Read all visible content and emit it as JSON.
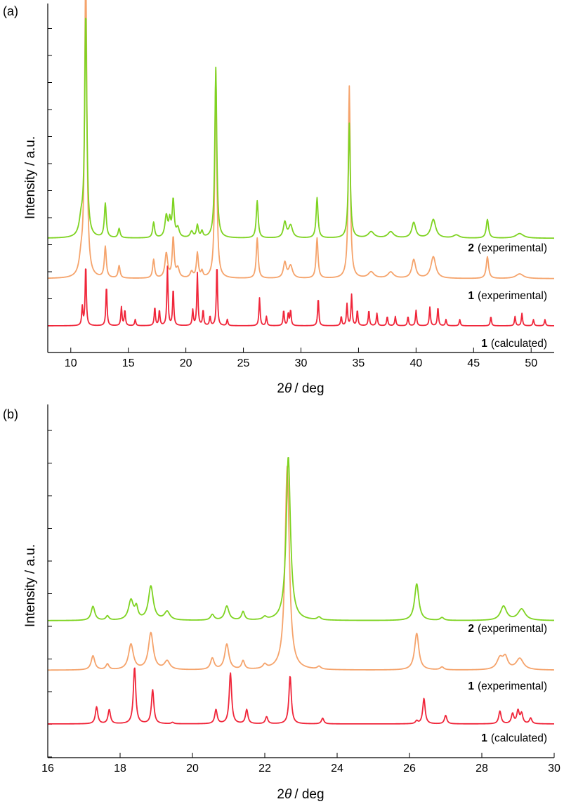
{
  "colors": {
    "green": "#7ed321",
    "orange": "#f5a36b",
    "red": "#f0263a"
  },
  "chart_data": [
    {
      "panel_label": "(a)",
      "type": "line",
      "xlabel_prefix": "2",
      "xlabel_theta": "θ",
      "xlabel_suffix": "/ deg",
      "ylabel": "Intensity / a.u.",
      "xlim": [
        8,
        52
      ],
      "xticks": [
        10,
        15,
        20,
        25,
        30,
        35,
        40,
        45,
        50
      ],
      "series": [
        {
          "label_num": "2",
          "label_text": "(experimental)",
          "color": "green",
          "offset": 0.27,
          "base": 0.012,
          "peaks": [
            [
              10.9,
              0.05,
              0.2
            ],
            [
              11.3,
              0.72,
              0.11
            ],
            [
              13.0,
              0.11,
              0.1
            ],
            [
              14.2,
              0.03,
              0.1
            ],
            [
              17.2,
              0.05,
              0.1
            ],
            [
              18.3,
              0.07,
              0.14
            ],
            [
              18.6,
              0.05,
              0.1
            ],
            [
              18.9,
              0.12,
              0.1
            ],
            [
              19.3,
              0.03,
              0.15
            ],
            [
              20.5,
              0.02,
              0.15
            ],
            [
              21.0,
              0.04,
              0.1
            ],
            [
              21.4,
              0.02,
              0.1
            ],
            [
              22.6,
              0.55,
              0.1
            ],
            [
              26.2,
              0.12,
              0.1
            ],
            [
              28.6,
              0.05,
              0.15
            ],
            [
              29.1,
              0.04,
              0.2
            ],
            [
              31.4,
              0.13,
              0.1
            ],
            [
              34.2,
              0.37,
              0.1
            ],
            [
              36.1,
              0.02,
              0.3
            ],
            [
              37.8,
              0.02,
              0.3
            ],
            [
              39.8,
              0.05,
              0.2
            ],
            [
              41.5,
              0.06,
              0.25
            ],
            [
              43.5,
              0.01,
              0.3
            ],
            [
              46.2,
              0.06,
              0.12
            ],
            [
              49.0,
              0.015,
              0.4
            ]
          ]
        },
        {
          "label_num": "1",
          "label_text": "(experimental)",
          "color": "orange",
          "offset": 0.14,
          "base": 0.012,
          "peaks": [
            [
              10.9,
              0.05,
              0.2
            ],
            [
              11.3,
              1.0,
              0.11
            ],
            [
              13.0,
              0.1,
              0.1
            ],
            [
              14.2,
              0.04,
              0.1
            ],
            [
              17.2,
              0.06,
              0.1
            ],
            [
              18.3,
              0.08,
              0.14
            ],
            [
              18.9,
              0.13,
              0.1
            ],
            [
              19.3,
              0.03,
              0.15
            ],
            [
              20.5,
              0.02,
              0.15
            ],
            [
              21.0,
              0.08,
              0.1
            ],
            [
              21.4,
              0.02,
              0.1
            ],
            [
              22.6,
              0.67,
              0.1
            ],
            [
              26.2,
              0.13,
              0.1
            ],
            [
              28.6,
              0.05,
              0.15
            ],
            [
              29.1,
              0.04,
              0.2
            ],
            [
              31.4,
              0.13,
              0.1
            ],
            [
              34.2,
              0.62,
              0.1
            ],
            [
              36.1,
              0.02,
              0.3
            ],
            [
              37.8,
              0.02,
              0.3
            ],
            [
              39.8,
              0.06,
              0.2
            ],
            [
              41.5,
              0.07,
              0.25
            ],
            [
              46.2,
              0.07,
              0.12
            ],
            [
              49.0,
              0.015,
              0.4
            ]
          ]
        },
        {
          "label_num": "1",
          "label_text": "(calculated)",
          "color": "red",
          "offset": 0.0,
          "base": 0.0,
          "peaks": [
            [
              11.0,
              0.06,
              0.06
            ],
            [
              11.3,
              0.2,
              0.06
            ],
            [
              13.1,
              0.13,
              0.06
            ],
            [
              14.4,
              0.06,
              0.06
            ],
            [
              14.7,
              0.05,
              0.06
            ],
            [
              15.6,
              0.02,
              0.06
            ],
            [
              17.3,
              0.06,
              0.06
            ],
            [
              17.7,
              0.05,
              0.06
            ],
            [
              18.4,
              0.19,
              0.06
            ],
            [
              18.9,
              0.12,
              0.06
            ],
            [
              20.6,
              0.05,
              0.06
            ],
            [
              21.0,
              0.17,
              0.06
            ],
            [
              21.5,
              0.05,
              0.06
            ],
            [
              22.1,
              0.03,
              0.06
            ],
            [
              22.7,
              0.2,
              0.06
            ],
            [
              23.6,
              0.02,
              0.06
            ],
            [
              26.4,
              0.09,
              0.06
            ],
            [
              27.0,
              0.03,
              0.06
            ],
            [
              28.5,
              0.05,
              0.06
            ],
            [
              28.9,
              0.04,
              0.06
            ],
            [
              29.1,
              0.05,
              0.06
            ],
            [
              31.5,
              0.09,
              0.06
            ],
            [
              33.5,
              0.03,
              0.06
            ],
            [
              34.0,
              0.07,
              0.06
            ],
            [
              34.4,
              0.1,
              0.06
            ],
            [
              34.9,
              0.05,
              0.06
            ],
            [
              35.9,
              0.05,
              0.06
            ],
            [
              36.6,
              0.04,
              0.06
            ],
            [
              37.5,
              0.03,
              0.06
            ],
            [
              38.2,
              0.03,
              0.06
            ],
            [
              39.3,
              0.03,
              0.06
            ],
            [
              40.0,
              0.05,
              0.06
            ],
            [
              41.2,
              0.06,
              0.06
            ],
            [
              41.9,
              0.06,
              0.06
            ],
            [
              42.6,
              0.02,
              0.06
            ],
            [
              43.8,
              0.02,
              0.06
            ],
            [
              46.5,
              0.03,
              0.06
            ],
            [
              48.6,
              0.03,
              0.06
            ],
            [
              49.2,
              0.04,
              0.06
            ],
            [
              50.2,
              0.02,
              0.06
            ],
            [
              51.2,
              0.02,
              0.06
            ]
          ]
        }
      ]
    },
    {
      "panel_label": "(b)",
      "type": "line",
      "xlabel_prefix": "2",
      "xlabel_theta": "θ",
      "xlabel_suffix": "/ deg",
      "ylabel": "Intensity / a.u.",
      "xlim": [
        16,
        30
      ],
      "xticks": [
        16,
        18,
        20,
        22,
        24,
        26,
        28,
        30
      ],
      "series": [
        {
          "label_num": "2",
          "label_text": "(experimental)",
          "color": "green",
          "offset": 0.365,
          "base": 0.0,
          "peaks": [
            [
              17.25,
              0.05,
              0.06
            ],
            [
              17.65,
              0.015,
              0.05
            ],
            [
              18.3,
              0.07,
              0.08
            ],
            [
              18.45,
              0.04,
              0.05
            ],
            [
              18.85,
              0.12,
              0.08
            ],
            [
              19.3,
              0.03,
              0.09
            ],
            [
              20.55,
              0.02,
              0.06
            ],
            [
              20.95,
              0.05,
              0.07
            ],
            [
              21.4,
              0.03,
              0.05
            ],
            [
              22.0,
              0.01,
              0.06
            ],
            [
              22.65,
              0.58,
              0.07
            ],
            [
              23.5,
              0.01,
              0.06
            ],
            [
              26.2,
              0.13,
              0.07
            ],
            [
              26.9,
              0.01,
              0.06
            ],
            [
              28.6,
              0.05,
              0.1
            ],
            [
              29.1,
              0.04,
              0.12
            ]
          ]
        },
        {
          "label_num": "1",
          "label_text": "(experimental)",
          "color": "orange",
          "offset": 0.19,
          "base": 0.0,
          "peaks": [
            [
              17.25,
              0.05,
              0.06
            ],
            [
              17.65,
              0.02,
              0.05
            ],
            [
              18.3,
              0.09,
              0.08
            ],
            [
              18.85,
              0.13,
              0.08
            ],
            [
              19.3,
              0.03,
              0.09
            ],
            [
              20.55,
              0.04,
              0.06
            ],
            [
              20.95,
              0.09,
              0.07
            ],
            [
              21.4,
              0.03,
              0.05
            ],
            [
              22.0,
              0.015,
              0.06
            ],
            [
              22.62,
              0.72,
              0.07
            ],
            [
              23.5,
              0.01,
              0.06
            ],
            [
              26.2,
              0.13,
              0.07
            ],
            [
              26.9,
              0.01,
              0.06
            ],
            [
              28.5,
              0.04,
              0.1
            ],
            [
              28.65,
              0.04,
              0.08
            ],
            [
              29.05,
              0.04,
              0.12
            ]
          ]
        },
        {
          "label_num": "1",
          "label_text": "(calculated)",
          "color": "red",
          "offset": 0.0,
          "base": 0.0,
          "peaks": [
            [
              17.35,
              0.06,
              0.04
            ],
            [
              17.7,
              0.05,
              0.04
            ],
            [
              18.4,
              0.2,
              0.04
            ],
            [
              18.9,
              0.12,
              0.04
            ],
            [
              19.45,
              0.005,
              0.04
            ],
            [
              20.65,
              0.05,
              0.04
            ],
            [
              21.05,
              0.18,
              0.04
            ],
            [
              21.5,
              0.05,
              0.04
            ],
            [
              22.05,
              0.025,
              0.04
            ],
            [
              22.7,
              0.17,
              0.04
            ],
            [
              23.6,
              0.02,
              0.04
            ],
            [
              26.2,
              0.01,
              0.04
            ],
            [
              26.4,
              0.09,
              0.04
            ],
            [
              27.0,
              0.03,
              0.04
            ],
            [
              28.5,
              0.045,
              0.04
            ],
            [
              28.85,
              0.035,
              0.04
            ],
            [
              29.0,
              0.045,
              0.04
            ],
            [
              29.1,
              0.035,
              0.04
            ],
            [
              29.35,
              0.02,
              0.04
            ]
          ]
        }
      ]
    }
  ]
}
